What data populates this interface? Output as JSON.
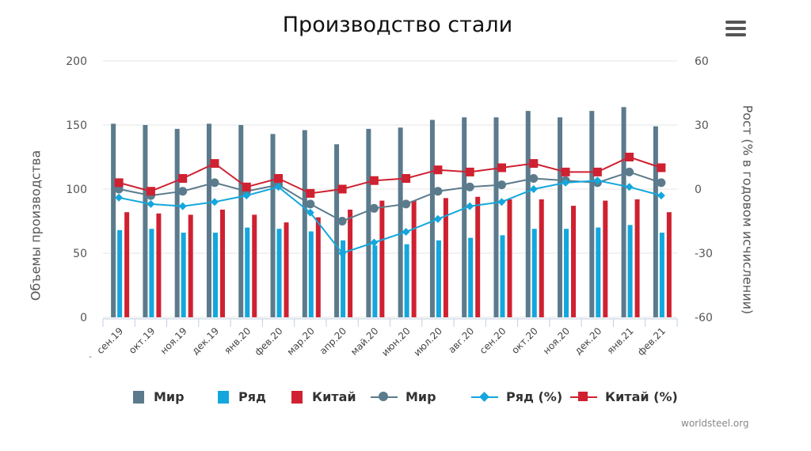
{
  "title": "Производство стали",
  "credit": "worldsteel.org",
  "chart_data": {
    "type": "bar+line",
    "categories": [
      "сен.19",
      "окт.19",
      "ноя.19",
      "дек.19",
      "янв.20",
      "фев.20",
      "мар.20",
      "апр.20",
      "май.20",
      "июн.20",
      "июл.20",
      "авг.20",
      "сен.20",
      "окт.20",
      "ноя.20",
      "дек.20",
      "янв.21",
      "фев.21"
    ],
    "x_axis_extra_label": "-",
    "ylabel_left": "Объемы производства",
    "ylabel_right": "Рост (% в годовом исчислении)",
    "ylim_left": [
      0,
      200
    ],
    "yticks_left": [
      "0",
      "50",
      "100",
      "150",
      "200"
    ],
    "ylim_right": [
      -60,
      60
    ],
    "yticks_right": [
      "-60",
      "-30",
      "0",
      "30",
      "60"
    ],
    "grid": true,
    "bar_series": [
      {
        "name": "Мир",
        "color": "#5b7b8c",
        "values": [
          151,
          150,
          147,
          151,
          150,
          143,
          146,
          135,
          147,
          148,
          154,
          156,
          156,
          161,
          156,
          161,
          164,
          149
        ]
      },
      {
        "name": "Ряд",
        "color": "#13a7dd",
        "values": [
          68,
          69,
          66,
          66,
          70,
          69,
          67,
          60,
          56,
          57,
          60,
          62,
          64,
          69,
          69,
          70,
          72,
          66
        ]
      },
      {
        "name": "Китай",
        "color": "#cf2131",
        "values": [
          82,
          81,
          80,
          84,
          80,
          74,
          78,
          84,
          91,
          91,
          93,
          94,
          92,
          92,
          87,
          91,
          92,
          82
        ]
      }
    ],
    "line_series": [
      {
        "name": "Мир",
        "color": "#5b7b8c",
        "marker": "circle",
        "values": [
          0,
          -3,
          -1,
          3,
          -1,
          2,
          -7,
          -15,
          -9,
          -7,
          -1,
          1,
          2,
          5,
          4,
          3,
          8,
          3
        ]
      },
      {
        "name": "Ряд (%)",
        "color": "#13a7dd",
        "marker": "diamond",
        "values": [
          -4,
          -7,
          -8,
          -6,
          -3,
          1,
          -11,
          -30,
          -25,
          -20,
          -14,
          -8,
          -6,
          0,
          3,
          4,
          1,
          -3
        ]
      },
      {
        "name": "Китай (%)",
        "color": "#cf2131",
        "marker": "square",
        "values": [
          3,
          -1,
          5,
          12,
          1,
          5,
          -2,
          0,
          4,
          5,
          9,
          8,
          10,
          12,
          8,
          8,
          15,
          10
        ]
      }
    ]
  }
}
